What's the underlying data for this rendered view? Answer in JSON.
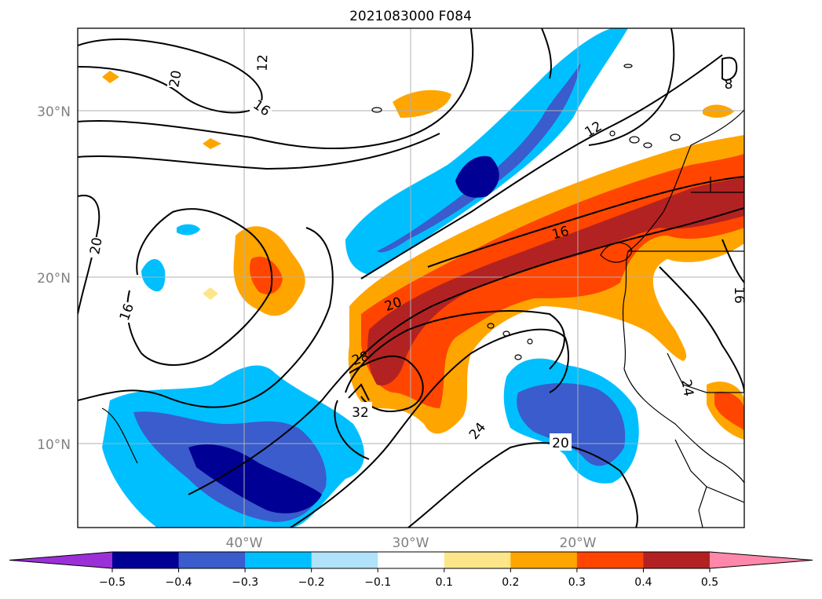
{
  "title": "2021083000 F084",
  "map": {
    "lat_labels": [
      "30°N",
      "20°N",
      "10°N"
    ],
    "lon_labels": [
      "40°W",
      "30°W",
      "20°W"
    ],
    "contour_labels": [
      "20",
      "12",
      "16",
      "20",
      "16",
      "12",
      "16",
      "20",
      "28",
      "32",
      "24",
      "20",
      "24",
      "16",
      "8"
    ]
  },
  "colorbar": {
    "ticks": [
      "−0.5",
      "−0.4",
      "−0.3",
      "−0.2",
      "−0.1",
      "0.1",
      "0.2",
      "0.3",
      "0.4",
      "0.5"
    ],
    "colors": [
      "#9b30d9",
      "#000094",
      "#3a5ccc",
      "#00bfff",
      "#b0e2fa",
      "#ffffff",
      "#fde68a",
      "#ffa500",
      "#ff4500",
      "#b22222",
      "#ff88aa"
    ]
  },
  "colors": {
    "frame": "#000000",
    "grid": "#b0b0b0",
    "label_gray": "#808080"
  }
}
